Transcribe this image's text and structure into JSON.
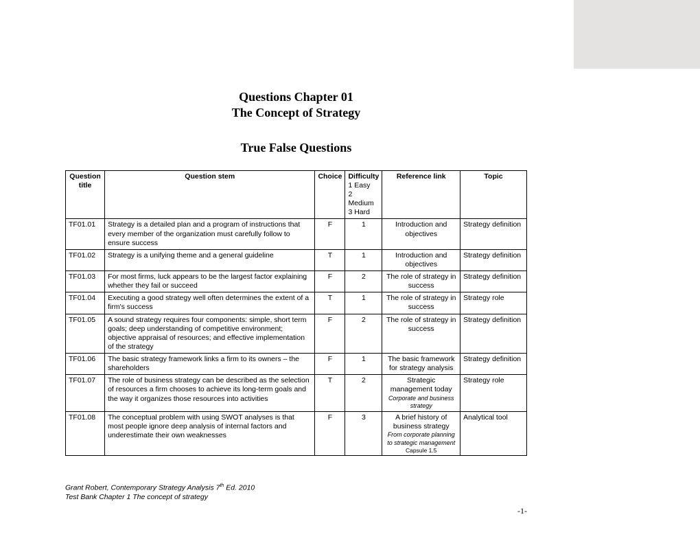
{
  "page": {
    "title_line1": "Questions Chapter 01",
    "title_line2": "The Concept of Strategy",
    "section_title": "True False Questions",
    "page_number": "-1-"
  },
  "footer": {
    "author_line_prefix": "Grant Robert, Contemporary Strategy Analysis 7",
    "author_line_sup": "th",
    "author_line_suffix": " Ed. 2010",
    "bank_line": "Test Bank Chapter 1 The concept of strategy"
  },
  "table": {
    "columns": {
      "title": "Question title",
      "stem": "Question stem",
      "choice": "Choice",
      "difficulty_label": "Difficulty",
      "difficulty_legend_1": "1 Easy",
      "difficulty_legend_2": "2 Medium",
      "difficulty_legend_3": "3 Hard",
      "reference": "Reference link",
      "topic": "Topic"
    },
    "rows": [
      {
        "title": "TF01.01",
        "stem": "Strategy is a detailed plan and a program of instructions that every member of the organization must carefully follow to ensure success",
        "choice": "F",
        "difficulty": "1",
        "ref_main": "Introduction and objectives",
        "ref_sub": "",
        "ref_cap": "",
        "topic": "Strategy definition"
      },
      {
        "title": "TF01.02",
        "stem": "Strategy is a unifying theme and a general guideline",
        "choice": "T",
        "difficulty": "1",
        "ref_main": "Introduction and objectives",
        "ref_sub": "",
        "ref_cap": "",
        "topic": "Strategy definition"
      },
      {
        "title": "TF01.03",
        "stem": "For most firms, luck appears to be the largest  factor explaining whether they fail or succeed",
        "choice": "F",
        "difficulty": "2",
        "ref_main": "The role of strategy in success",
        "ref_sub": "",
        "ref_cap": "",
        "topic": "Strategy definition"
      },
      {
        "title": "TF01.04",
        "stem": "Executing a good strategy well often determines the extent of a firm's success",
        "choice": "T",
        "difficulty": "1",
        "ref_main": "The role of strategy in success",
        "ref_sub": "",
        "ref_cap": "",
        "topic": "Strategy role"
      },
      {
        "title": "TF01.05",
        "stem": "A sound strategy requires four components: simple, short term goals; deep understanding of competitive environment; objective appraisal of resources; and effective implementation of the strategy",
        "choice": "F",
        "difficulty": "2",
        "ref_main": "The role of strategy in success",
        "ref_sub": "",
        "ref_cap": "",
        "topic": "Strategy definition"
      },
      {
        "title": "TF01.06",
        "stem": "The basic strategy framework links a firm to its owners – the shareholders",
        "choice": "F",
        "difficulty": "1",
        "ref_main": "The basic framework for strategy analysis",
        "ref_sub": "",
        "ref_cap": "",
        "topic": "Strategy definition"
      },
      {
        "title": "TF01.07",
        "stem": "The role of business strategy can be described as the selection of resources a firm chooses to achieve its long-term goals and  the way it organizes those resources into activities",
        "choice": "T",
        "difficulty": "2",
        "ref_main": "Strategic management today",
        "ref_sub": "Corporate and business strategy",
        "ref_cap": "",
        "topic": "Strategy role"
      },
      {
        "title": "TF01.08",
        "stem": "The conceptual problem with using SWOT analyses is that most people ignore deep analysis of internal factors and underestimate their own weaknesses",
        "choice": "F",
        "difficulty": "3",
        "ref_main": "A brief history of business strategy",
        "ref_sub": "From corporate planning to strategic management",
        "ref_cap": "Capsule 1.5",
        "topic": "Analytical tool"
      }
    ]
  }
}
